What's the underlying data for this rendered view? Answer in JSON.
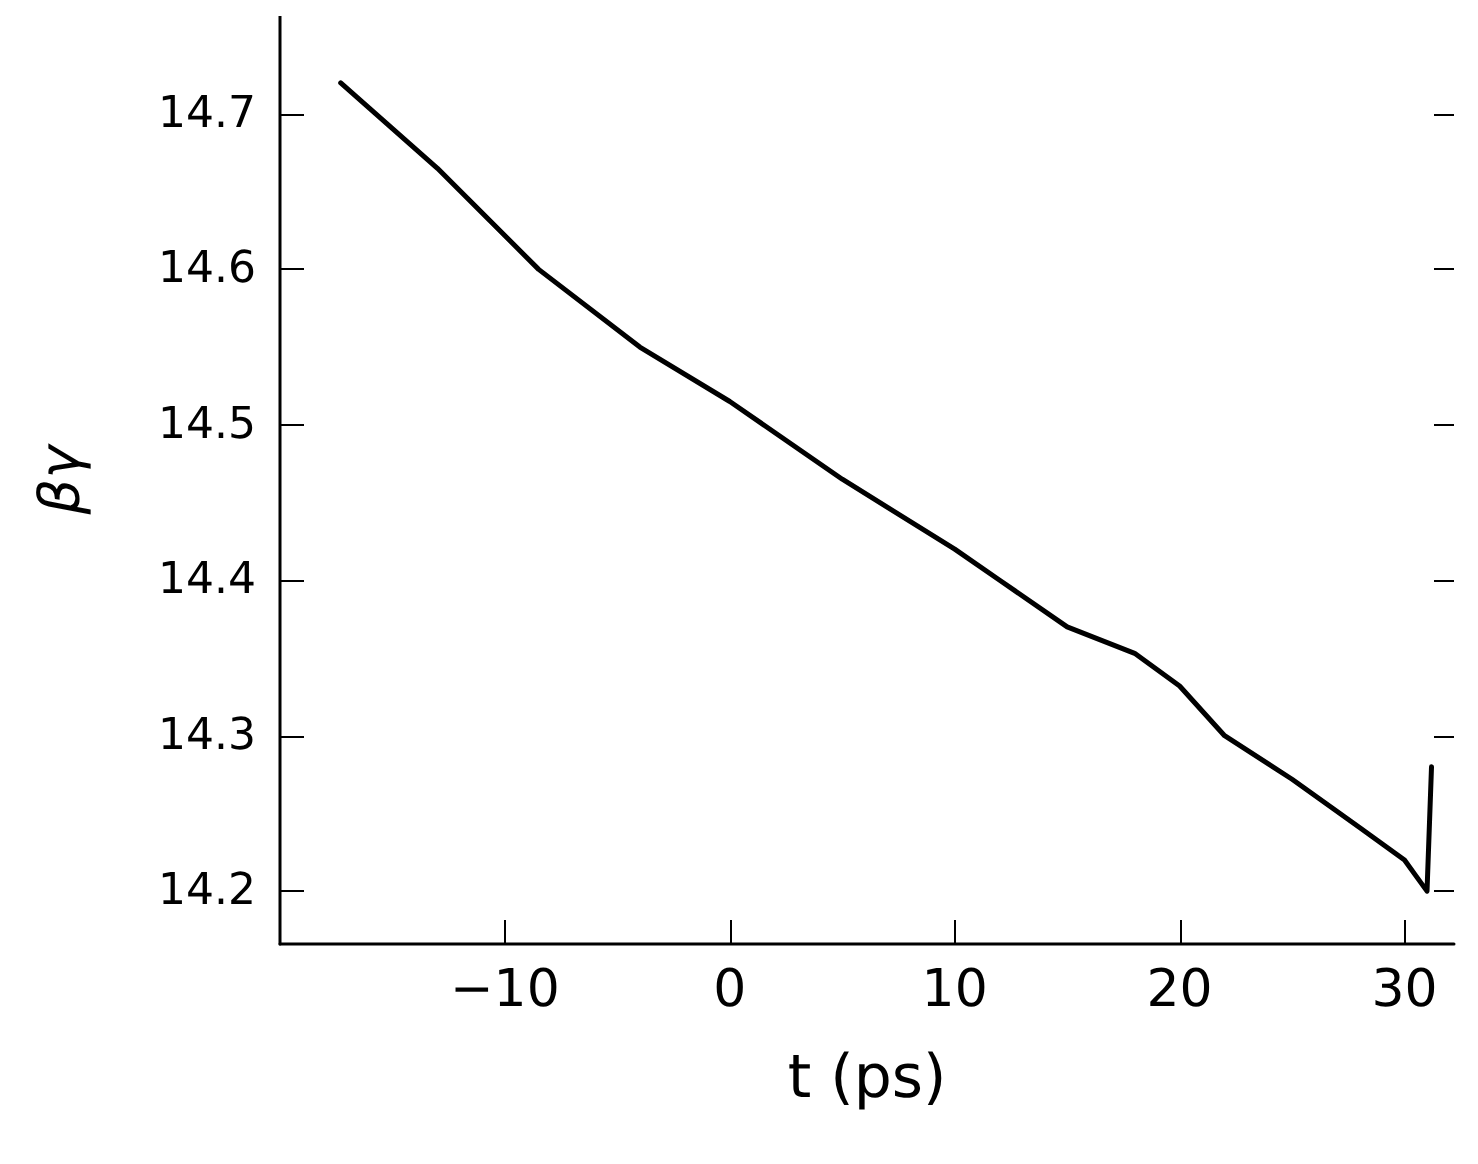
{
  "chart_data": {
    "type": "line",
    "xlabel": "t (ps)",
    "ylabel": "βγ",
    "x": [
      -17.3,
      -13,
      -8.5,
      -4,
      0,
      5,
      10,
      12,
      15,
      18,
      20,
      22,
      25,
      28,
      30,
      30.5,
      31,
      31.2
    ],
    "series": [
      {
        "color": "#000000",
        "values": [
          14.72,
          14.665,
          14.6,
          14.55,
          14.515,
          14.465,
          14.42,
          14.4,
          14.37,
          14.353,
          14.332,
          14.3,
          14.272,
          14.241,
          14.22,
          14.21,
          14.2,
          14.28
        ]
      }
    ],
    "xlim": [
      -20,
      32.2
    ],
    "xticks": [
      -10,
      0,
      10,
      20,
      30
    ],
    "ylim": [
      14.166,
      14.763
    ],
    "yticks": [
      14.2,
      14.3,
      14.4,
      14.5,
      14.6,
      14.7
    ],
    "grid": false,
    "marker": "none",
    "line_style": "solid"
  }
}
